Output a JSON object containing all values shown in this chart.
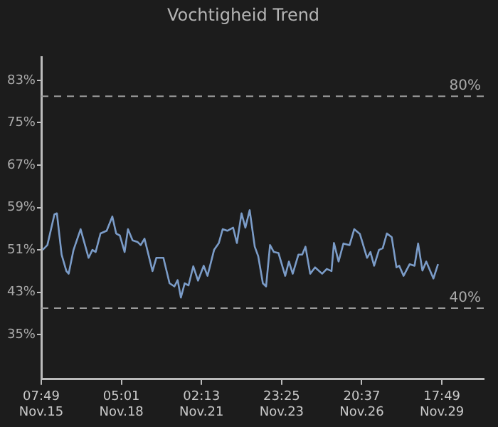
{
  "chart_data": {
    "type": "line",
    "title": "Vochtigheid Trend",
    "x": [
      "--11-15T09:00",
      "--11-15T13:06",
      "--11-15T19:12",
      "--11-15T21:18",
      "--11-16T01:24",
      "--11-16T05:30",
      "--11-16T07:30",
      "--11-16T11:42",
      "--11-16T17:48",
      "--11-17T00:42",
      "--11-17T04:00",
      "--11-17T06:48",
      "--11-17T11:00",
      "--11-17T16:18",
      "--11-17T21:12",
      "--11-18T00:30",
      "--11-18T03:42",
      "--11-18T07:48",
      "--11-18T10:42",
      "--11-18T14:42",
      "--11-18T18:54",
      "--11-18T21:42",
      "--11-19T01:00",
      "--11-19T07:54",
      "--11-19T11:12",
      "--11-19T17:18",
      "--11-19T22:36",
      "--11-20T02:48",
      "--11-20T05:36",
      "--11-20T08:24",
      "--11-20T11:42",
      "--11-20T15:00",
      "--11-20T19:06",
      "--11-20T23:12",
      "--11-21T04:06",
      "--11-21T07:24",
      "--11-21T13:06",
      "--11-21T17:12",
      "--11-21T20:30",
      "--11-22T00:30",
      "--11-22T05:30",
      "--11-22T08:48",
      "--11-22T12:48",
      "--11-22T16:06",
      "--11-22T19:48",
      "--11-23T00:12",
      "--11-23T03:12",
      "--11-23T07:12",
      "--11-23T10:00",
      "--11-23T13:24",
      "--11-23T16:42",
      "--11-23T20:42",
      "--11-24T02:30",
      "--11-24T05:42",
      "--11-24T09:00",
      "--11-24T13:54",
      "--11-24T17:12",
      "--11-24T20:00",
      "--11-25T00:06",
      "--11-25T04:18",
      "--11-25T10:24",
      "--11-25T14:24",
      "--11-25T18:30",
      "--11-25T20:36",
      "--11-26T00:36",
      "--11-26T04:48",
      "--11-26T10:06",
      "--11-26T14:06",
      "--11-26T19:00",
      "--11-27T01:12",
      "--11-27T04:06",
      "--11-27T07:18",
      "--11-27T11:30",
      "--11-27T14:42",
      "--11-27T18:18",
      "--11-27T22:30",
      "--11-28T02:36",
      "--11-28T05:00",
      "--11-28T08:42",
      "--11-28T14:00",
      "--11-28T18:12",
      "--11-28T21:18",
      "--11-29T01:00",
      "--11-29T04:18",
      "--11-29T10:30",
      "--11-29T14:30"
    ],
    "series": [
      {
        "color": "#7b9cc8",
        "values": [
          51,
          51.9,
          57.7,
          57.9,
          50.1,
          47,
          46.5,
          51,
          54.9,
          49.5,
          51,
          50.6,
          54.1,
          54.6,
          57.3,
          54.1,
          53.7,
          50.6,
          54.9,
          52.8,
          52.5,
          51.9,
          53.1,
          47,
          49.5,
          49.5,
          44.7,
          44.1,
          45.3,
          42,
          44.7,
          44.3,
          47.9,
          45.2,
          48,
          46.1,
          51,
          52.3,
          54.9,
          54.6,
          55.2,
          52.3,
          57.9,
          55.2,
          58.5,
          51.6,
          49.8,
          44.7,
          44.1,
          51.9,
          50.6,
          50.4,
          46.1,
          48.8,
          46.5,
          50.1,
          50.1,
          51.6,
          46.5,
          47.7,
          46.5,
          47.4,
          47,
          52.3,
          48.8,
          52.2,
          51.9,
          54.9,
          54,
          49.5,
          50.6,
          48,
          51,
          51.3,
          54.1,
          53.4,
          47.7,
          48,
          46.1,
          48.3,
          48,
          52.2,
          47.1,
          48.8,
          45.6,
          48.3
        ]
      }
    ],
    "xlim": [
      "--11-15T07:49",
      "--12-01T06:00"
    ],
    "xticks": [
      {
        "value": "--11-15T07:49",
        "label": "07:49\nNov.15"
      },
      {
        "value": "--11-18T05:01",
        "label": "05:01\nNov.18"
      },
      {
        "value": "--11-21T02:13",
        "label": "02:13\nNov.21"
      },
      {
        "value": "--11-23T23:25",
        "label": "23:25\nNov.23"
      },
      {
        "value": "--11-26T20:37",
        "label": "20:37\nNov.26"
      },
      {
        "value": "--11-29T17:49",
        "label": "17:49\nNov.29"
      }
    ],
    "ylim": [
      26.6,
      87.3
    ],
    "yticks": [
      {
        "value": 35,
        "label": "35%"
      },
      {
        "value": 43,
        "label": "43%"
      },
      {
        "value": 51,
        "label": "51%"
      },
      {
        "value": 59,
        "label": "59%"
      },
      {
        "value": 67,
        "label": "67%"
      },
      {
        "value": 75,
        "label": "75%"
      },
      {
        "value": 83,
        "label": "83%"
      }
    ],
    "ref_lines": [
      {
        "axis": "y",
        "value": 80,
        "label": "80%",
        "color": "#9a9a9a",
        "line_style": "dashed"
      },
      {
        "axis": "y",
        "value": 40,
        "label": "40%",
        "color": "#9a9a9a",
        "line_style": "dashed"
      }
    ],
    "grid": false,
    "legend": false,
    "marker": "none",
    "line_style": "solid"
  }
}
